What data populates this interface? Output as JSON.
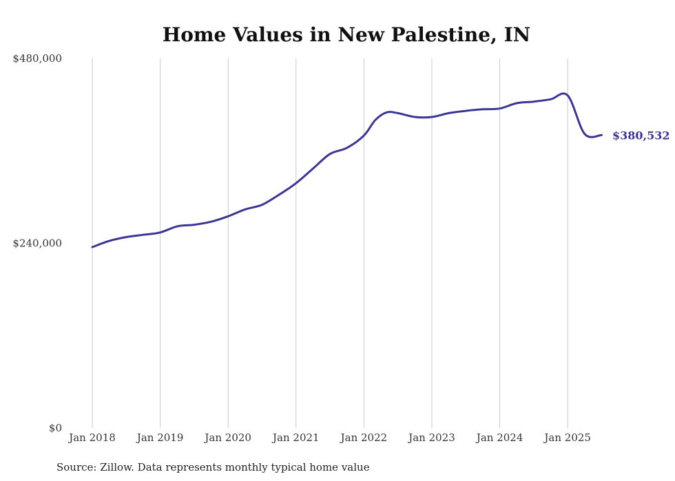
{
  "chart_data": {
    "type": "line",
    "title": "Home Values in New Palestine, IN",
    "xlabel": "",
    "ylabel": "",
    "ylim": [
      0,
      480000
    ],
    "y_ticks": [
      "$0",
      "$240,000",
      "$480,000"
    ],
    "x_tick_labels": [
      "Jan 2018",
      "Jan 2019",
      "Jan 2020",
      "Jan 2021",
      "Jan 2022",
      "Jan 2023",
      "Jan 2024",
      "Jan 2025"
    ],
    "grid": "vertical",
    "line_color": "#3b3595",
    "end_label": "$380,532",
    "series": [
      {
        "x": [
          "2018-01",
          "2018-04",
          "2018-07",
          "2018-10",
          "2019-01",
          "2019-04",
          "2019-07",
          "2019-10",
          "2020-01",
          "2020-04",
          "2020-07",
          "2020-10",
          "2021-01",
          "2021-04",
          "2021-07",
          "2021-10",
          "2022-01",
          "2022-03",
          "2022-05",
          "2022-07",
          "2022-10",
          "2023-01",
          "2023-04",
          "2023-07",
          "2023-10",
          "2024-01",
          "2024-04",
          "2024-07",
          "2024-10",
          "2025-01",
          "2025-04",
          "2025-07"
        ],
        "values": [
          235000,
          243000,
          248000,
          251000,
          254000,
          262000,
          264000,
          268000,
          275000,
          284000,
          290000,
          303000,
          318000,
          337000,
          356000,
          364000,
          380000,
          400000,
          410000,
          409000,
          404000,
          404000,
          409000,
          412000,
          414000,
          415000,
          422000,
          424000,
          427000,
          432000,
          382000,
          380532
        ]
      }
    ]
  },
  "footer": {
    "source": "Source: Zillow. Data represents monthly typical home value"
  }
}
